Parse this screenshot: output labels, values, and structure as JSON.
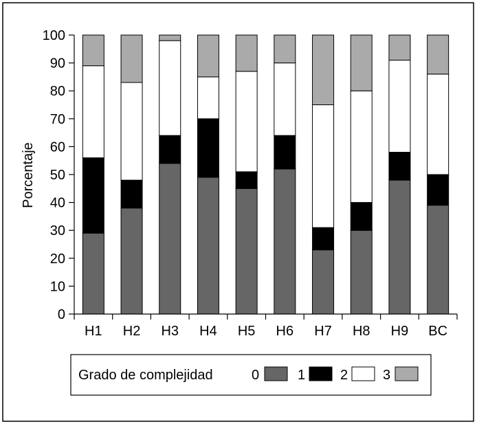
{
  "chart_data": {
    "type": "bar",
    "stacked": true,
    "percent_stacked": true,
    "categories": [
      "H1",
      "H2",
      "H3",
      "H4",
      "H5",
      "H6",
      "H7",
      "H8",
      "H9",
      "BC"
    ],
    "series": [
      {
        "name": "0",
        "color": "#666666",
        "values": [
          29,
          38,
          54,
          49,
          45,
          52,
          23,
          30,
          48,
          39
        ]
      },
      {
        "name": "1",
        "color": "#000000",
        "values": [
          27,
          10,
          10,
          21,
          6,
          12,
          8,
          10,
          10,
          11
        ]
      },
      {
        "name": "2",
        "color": "#ffffff",
        "values": [
          33,
          35,
          34,
          15,
          36,
          26,
          44,
          40,
          33,
          36
        ]
      },
      {
        "name": "3",
        "color": "#aaaaaa",
        "values": [
          11,
          17,
          2,
          15,
          13,
          10,
          25,
          20,
          9,
          14
        ]
      }
    ],
    "ylabel": "Porcentaje",
    "xlabel": "",
    "ylim": [
      0,
      100
    ],
    "yticks": [
      0,
      10,
      20,
      30,
      40,
      50,
      60,
      70,
      80,
      90,
      100
    ],
    "legend": {
      "title": "Grado de complejidad",
      "position": "bottom"
    },
    "grid": false
  }
}
